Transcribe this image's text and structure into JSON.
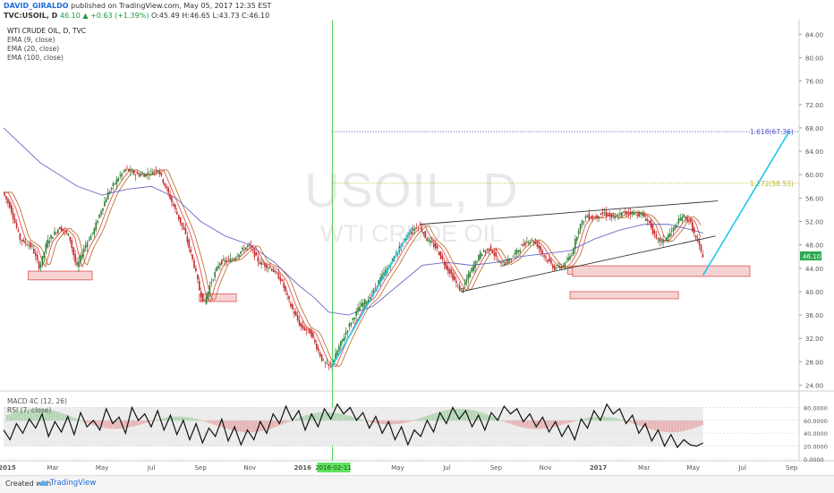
{
  "header": {
    "author": "DAVID_GIRALDO",
    "published_text": "published on TradingView.com, May 05, 2017 12:35 EST",
    "symbol": "TVC:USOIL, D",
    "change": "46.10 ▲ +0.63 (+1.39%)",
    "ohlc": "O:45.49  H:46.65  L:43.73  C:46.10"
  },
  "legend": {
    "title": "WTI CRUDE OIL, D, TVC",
    "ema9": "EMA (9, close)",
    "ema20": "EMA (20, close)",
    "ema100": "EMA (100, close)"
  },
  "watermark": {
    "symbol": "USOIL, D",
    "name": "WTI CRUDE OIL"
  },
  "indicators": {
    "macd": "MACD 4C (12, 26)",
    "rsi": "RSI (7, close)"
  },
  "footer": {
    "created_with": "Created with",
    "brand": "TradingView"
  },
  "colors": {
    "up": "#2e7d32",
    "down": "#c62828",
    "ema9": "#e05252",
    "ema20": "#b5651d",
    "ema100": "#6a6ac8",
    "cyan_line": "#1ec8f0",
    "green_vline": "#4cd04c",
    "fib_1618": "#5656c8",
    "fib_1272": "#c8c83a",
    "box_fill": "#f6d3d3",
    "box_stroke": "#d9534f",
    "price_label_bg": "#2fa84f"
  },
  "chart_data": {
    "type": "candlestick",
    "title": "WTI CRUDE OIL, D, TVC",
    "y_axis": {
      "ticks": [
        24,
        28,
        32,
        36,
        40,
        44,
        48,
        52,
        56,
        60,
        64,
        68,
        72,
        76,
        80,
        84
      ],
      "tick_labels": [
        "24.00",
        "28.00",
        "32.00",
        "36.00",
        "40.00",
        "44.00",
        "48.00",
        "52.00",
        "56.00",
        "60.00",
        "64.00",
        "68.00",
        "72.00",
        "76.00",
        "80.00",
        "84.00"
      ],
      "ylim": [
        23.0,
        86.5
      ]
    },
    "x_axis": {
      "labels": [
        "2015",
        "Mar",
        "May",
        "Jul",
        "Sep",
        "Nov",
        "2016",
        "2016-02-11",
        "May",
        "Jul",
        "Sep",
        "Nov",
        "2017",
        "Mar",
        "May",
        "Jul",
        "Sep"
      ],
      "positions": [
        0,
        2,
        4,
        6,
        8,
        10,
        12,
        13.35,
        16,
        18,
        20,
        22,
        24,
        26,
        28,
        30,
        32
      ],
      "xlim": [
        0,
        32.3
      ],
      "highlight": "2016-02-11"
    },
    "last_price": 46.1,
    "last_price_label": "46.10",
    "price_path": [
      [
        0,
        57
      ],
      [
        0.3,
        54.5
      ],
      [
        0.7,
        49
      ],
      [
        1.2,
        47.5
      ],
      [
        1.5,
        44
      ],
      [
        1.8,
        48.5
      ],
      [
        2.3,
        51
      ],
      [
        2.7,
        49.5
      ],
      [
        3.0,
        44
      ],
      [
        3.3,
        47.5
      ],
      [
        3.7,
        50.5
      ],
      [
        4.0,
        54
      ],
      [
        4.3,
        57
      ],
      [
        4.7,
        59.5
      ],
      [
        5.0,
        61
      ],
      [
        5.4,
        60
      ],
      [
        5.8,
        60
      ],
      [
        6.3,
        61
      ],
      [
        6.6,
        58
      ],
      [
        7.0,
        54
      ],
      [
        7.4,
        50
      ],
      [
        7.8,
        44
      ],
      [
        8.0,
        40
      ],
      [
        8.2,
        38
      ],
      [
        8.4,
        41
      ],
      [
        8.8,
        45
      ],
      [
        9.3,
        45.5
      ],
      [
        9.7,
        47
      ],
      [
        10.0,
        48
      ],
      [
        10.4,
        45
      ],
      [
        10.9,
        44
      ],
      [
        11.3,
        42
      ],
      [
        11.7,
        37.5
      ],
      [
        12.1,
        34
      ],
      [
        12.5,
        33
      ],
      [
        12.8,
        30
      ],
      [
        13.0,
        28
      ],
      [
        13.3,
        27
      ],
      [
        13.7,
        31
      ],
      [
        14.1,
        34.5
      ],
      [
        14.5,
        37.5
      ],
      [
        14.9,
        39
      ],
      [
        15.3,
        42
      ],
      [
        15.7,
        44.5
      ],
      [
        16.1,
        47.5
      ],
      [
        16.5,
        50
      ],
      [
        16.9,
        51.5
      ],
      [
        17.2,
        49
      ],
      [
        17.6,
        47.5
      ],
      [
        17.9,
        45
      ],
      [
        18.2,
        43
      ],
      [
        18.6,
        40
      ],
      [
        19.0,
        43.5
      ],
      [
        19.4,
        46.5
      ],
      [
        19.8,
        47.5
      ],
      [
        20.2,
        44.5
      ],
      [
        20.6,
        45.5
      ],
      [
        21.0,
        47.5
      ],
      [
        21.4,
        49
      ],
      [
        21.7,
        48
      ],
      [
        22.0,
        46
      ],
      [
        22.4,
        44
      ],
      [
        22.8,
        44.5
      ],
      [
        23.1,
        46.5
      ],
      [
        23.4,
        51
      ],
      [
        23.7,
        53
      ],
      [
        24.0,
        52.5
      ],
      [
        24.4,
        53.5
      ],
      [
        24.8,
        52.5
      ],
      [
        25.2,
        53.5
      ],
      [
        25.6,
        53.5
      ],
      [
        26.0,
        53
      ],
      [
        26.3,
        51.5
      ],
      [
        26.5,
        49
      ],
      [
        26.8,
        48.5
      ],
      [
        27.2,
        50.5
      ],
      [
        27.6,
        53
      ],
      [
        27.9,
        52
      ],
      [
        28.1,
        49.5
      ],
      [
        28.3,
        47.5
      ],
      [
        28.4,
        46.1
      ]
    ],
    "ema100_path": [
      [
        0,
        68
      ],
      [
        1.5,
        62
      ],
      [
        3,
        58
      ],
      [
        4,
        56.5
      ],
      [
        5,
        57.5
      ],
      [
        6,
        58
      ],
      [
        7,
        56
      ],
      [
        8,
        52
      ],
      [
        9,
        49.5
      ],
      [
        10,
        48
      ],
      [
        11,
        45
      ],
      [
        12,
        41
      ],
      [
        12.6,
        39
      ],
      [
        13.2,
        36.5
      ],
      [
        14,
        36
      ],
      [
        15,
        37.5
      ],
      [
        16,
        41
      ],
      [
        17,
        44.5
      ],
      [
        18,
        45
      ],
      [
        19,
        44.5
      ],
      [
        20,
        45
      ],
      [
        21,
        46
      ],
      [
        22,
        46.5
      ],
      [
        23,
        47
      ],
      [
        24,
        49
      ],
      [
        25,
        50.5
      ],
      [
        26,
        51.5
      ],
      [
        27,
        51.5
      ],
      [
        28,
        50.5
      ],
      [
        28.4,
        50
      ]
    ],
    "rsi_series": [
      45,
      30,
      55,
      40,
      62,
      48,
      70,
      35,
      58,
      42,
      66,
      38,
      72,
      50,
      60,
      45,
      78,
      55,
      65,
      40,
      80,
      60,
      70,
      50,
      75,
      45,
      68,
      38,
      60,
      30,
      55,
      25,
      48,
      35,
      62,
      28,
      50,
      22,
      45,
      30,
      58,
      40,
      70,
      55,
      82,
      60,
      75,
      45,
      70,
      50,
      78,
      62,
      85,
      70,
      80,
      60,
      72,
      48,
      66,
      40,
      58,
      30,
      50,
      22,
      45,
      35,
      60,
      42,
      72,
      55,
      80,
      62,
      75,
      50,
      68,
      45,
      72,
      60,
      82,
      70,
      78,
      58,
      70,
      50,
      65,
      42,
      58,
      35,
      52,
      30,
      62,
      48,
      75,
      60,
      85,
      70,
      78,
      55,
      68,
      40,
      55,
      28,
      45,
      20,
      38,
      18,
      30,
      22,
      20,
      25
    ]
  }
}
